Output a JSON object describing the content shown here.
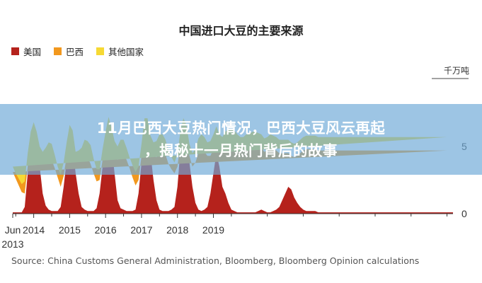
{
  "banner": {
    "line1": "11月巴西大豆热门情况，巴西大豆风云再起",
    "line2": "，揭秘十一月热门背后的故事"
  },
  "source": "Source: China Customs General Administration, Bloomberg, Bloomberg Opinion calculations",
  "colors": {
    "us": "#b5221c",
    "brazil": "#f2981e",
    "other": "#f6d934",
    "banner": "#6eaad7"
  },
  "chart_data": {
    "type": "area",
    "title": "中国进口大豆的主要来源",
    "unit": "千万吨",
    "stacked": true,
    "x_start": "2013-06",
    "x_interval": "monthly",
    "x_tick_labels": [
      "Jun\n2013",
      "2014",
      "2015",
      "2016",
      "2017",
      "2018",
      "2019"
    ],
    "y_ticks": [
      0,
      5
    ],
    "ylim": [
      0,
      10
    ],
    "legend": [
      "美国",
      "巴西",
      "其他国家"
    ],
    "legend_position": "top-left",
    "series": [
      {
        "name": "美国",
        "color": "#b5221c",
        "values": [
          0.1,
          0.1,
          0.1,
          0.1,
          0.5,
          3.0,
          5.0,
          6.0,
          5.2,
          3.5,
          1.5,
          0.6,
          0.3,
          0.2,
          0.2,
          0.2,
          0.5,
          2.0,
          4.0,
          5.5,
          5.0,
          3.0,
          1.5,
          0.5,
          0.3,
          0.2,
          0.2,
          0.2,
          0.4,
          1.5,
          3.5,
          5.0,
          6.0,
          5.0,
          3.0,
          1.0,
          0.4,
          0.3,
          0.2,
          0.2,
          0.2,
          0.3,
          1.5,
          3.8,
          6.0,
          6.0,
          4.5,
          2.5,
          1.0,
          0.3,
          0.2,
          0.2,
          0.2,
          0.3,
          0.5,
          2.0,
          4.8,
          6.0,
          5.5,
          3.8,
          2.0,
          0.8,
          0.3,
          0.2,
          0.3,
          0.5,
          1.5,
          3.0,
          4.5,
          3.5,
          2.0,
          1.5,
          0.8,
          0.3,
          0.2,
          0.1,
          0.1,
          0.1,
          0.1,
          0.1,
          0.1,
          0.1,
          0.2,
          0.3,
          0.2,
          0.1,
          0.1,
          0.2,
          0.3,
          0.5,
          1.0,
          1.5,
          2.0,
          1.8,
          1.2,
          0.8,
          0.5,
          0.3,
          0.2,
          0.2,
          0.2,
          0.2,
          0.1,
          0.1,
          0.1,
          0.1,
          0.1,
          0.1,
          0.1,
          0.1,
          0.1,
          0.1,
          0.1,
          0.1,
          0.1,
          0.1,
          0.1,
          0.1,
          0.1,
          0.1,
          0.1,
          0.1,
          0.1,
          0.1,
          0.1,
          0.1,
          0.1,
          0.1,
          0.1,
          0.1,
          0.1,
          0.1,
          0.1,
          0.1,
          0.1,
          0.1,
          0.1,
          0.1,
          0.1,
          0.1,
          0.1,
          0.1,
          0.1,
          0.1,
          0.1,
          0.1,
          0.1,
          0.1
        ]
      },
      {
        "name": "巴西",
        "color": "#f2981e",
        "values": [
          3.0,
          2.5,
          2.0,
          1.5,
          1.0,
          0.5,
          0.3,
          0.3,
          0.5,
          1.0,
          2.5,
          3.5,
          4.0,
          3.8,
          3.2,
          2.5,
          1.5,
          0.8,
          0.3,
          0.3,
          0.5,
          1.0,
          2.5,
          3.5,
          4.2,
          4.0,
          3.5,
          2.8,
          2.0,
          1.0,
          0.5,
          0.3,
          0.3,
          0.5,
          1.5,
          3.0,
          4.0,
          4.2,
          3.8,
          3.2,
          2.5,
          1.8,
          1.0,
          0.5,
          0.3,
          0.3,
          0.5,
          1.8,
          3.2,
          4.3,
          4.5,
          4.2,
          3.5,
          3.0,
          2.5,
          1.5,
          0.5,
          0.3,
          0.3,
          0.5,
          1.5,
          3.0,
          4.2,
          4.6,
          4.3,
          3.8,
          2.8,
          1.8,
          1.0,
          1.3,
          2.5,
          3.5,
          4.5,
          5.0,
          5.0,
          4.8,
          4.6,
          4.6,
          4.8,
          4.8,
          5.0,
          5.0,
          4.8,
          4.6,
          4.4,
          4.6,
          4.8,
          4.6,
          4.4,
          4.0,
          3.5,
          3.0,
          2.5,
          2.5,
          3.0,
          3.5,
          4.0,
          4.4,
          4.6,
          4.6,
          4.6,
          4.6,
          4.6,
          4.6,
          4.6,
          4.6,
          4.6,
          4.6,
          4.6,
          4.6,
          4.6,
          4.6,
          4.6,
          4.6,
          4.6,
          4.6,
          4.6,
          4.6,
          4.6,
          4.6,
          4.6,
          4.6,
          4.6,
          4.6,
          4.6,
          4.6,
          4.6,
          4.6,
          4.6,
          4.6,
          4.6,
          4.6,
          4.6,
          4.6,
          4.6,
          4.6,
          4.6,
          4.6,
          4.6,
          4.6,
          4.6,
          4.6,
          4.6,
          4.6,
          4.6,
          4.6
        ]
      },
      {
        "name": "其他国家",
        "color": "#f6d934",
        "values": [
          0.4,
          0.4,
          0.5,
          0.6,
          0.9,
          1.0,
          0.8,
          0.5,
          0.4,
          0.5,
          0.6,
          0.8,
          1.0,
          1.2,
          1.0,
          0.8,
          0.9,
          1.0,
          1.0,
          0.8,
          0.7,
          0.6,
          0.7,
          0.9,
          1.0,
          1.2,
          1.4,
          1.1,
          0.9,
          0.8,
          0.8,
          0.8,
          0.9,
          0.9,
          0.9,
          1.0,
          1.1,
          1.0,
          0.9,
          0.8,
          0.9,
          1.0,
          1.0,
          0.9,
          0.8,
          0.8,
          0.8,
          1.0,
          1.2,
          1.3,
          1.2,
          1.1,
          1.0,
          0.9,
          0.8,
          0.9,
          0.9,
          0.8,
          0.8,
          0.9,
          1.0,
          1.0,
          1.1,
          1.1,
          1.1,
          1.0,
          1.1,
          1.1,
          1.0,
          1.1,
          1.2,
          1.1,
          1.0,
          1.0,
          1.0,
          1.0,
          1.0,
          1.0,
          1.0,
          1.0,
          1.0,
          1.0,
          1.0,
          1.0,
          1.0,
          1.0,
          1.0,
          1.0,
          1.0,
          1.0,
          1.0,
          1.0,
          1.0,
          1.0,
          1.0,
          1.0,
          1.0,
          1.0,
          1.0,
          1.0,
          1.0,
          1.0,
          1.0,
          1.0,
          1.0,
          1.0,
          1.0,
          1.0,
          1.0,
          1.0,
          1.0,
          1.0,
          1.0,
          1.0,
          1.0,
          1.0,
          1.0,
          1.0,
          1.0,
          1.0,
          1.0,
          1.0,
          1.0,
          1.0,
          1.0,
          1.0,
          1.0,
          1.0,
          1.0,
          1.0,
          1.0,
          1.0,
          1.0,
          1.0,
          1.0,
          1.0,
          1.0,
          1.0,
          1.0,
          1.0,
          1.0,
          1.0,
          1.0,
          1.0,
          1.0,
          1.0,
          1.0,
          1.0
        ]
      }
    ]
  }
}
